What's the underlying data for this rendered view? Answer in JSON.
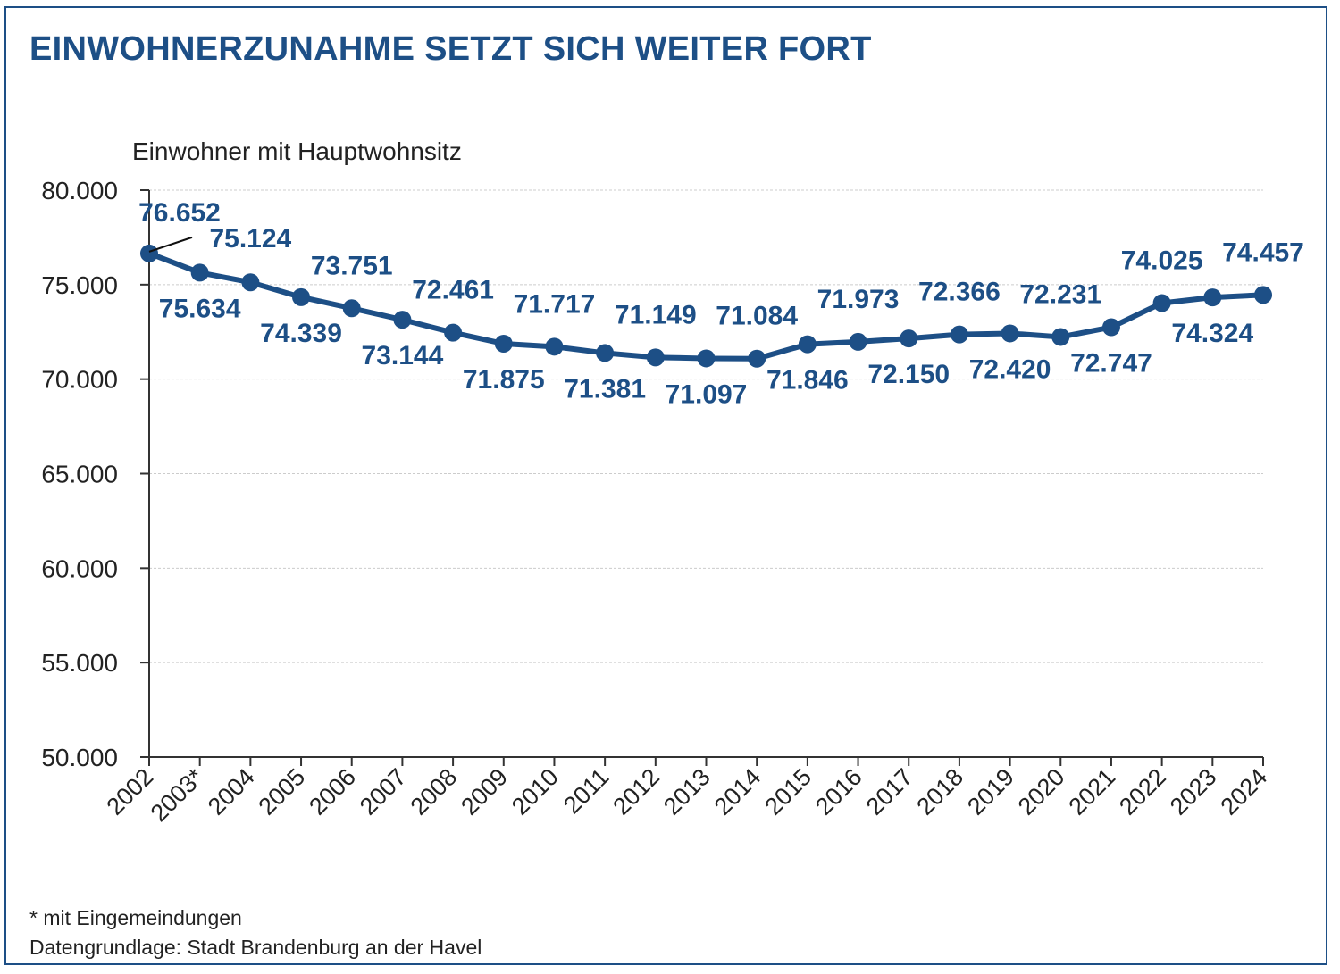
{
  "colors": {
    "accent": "#1d4f86",
    "frame": "#1d4f86",
    "axis": "#333333",
    "grid": "#cccccc"
  },
  "title": "EINWOHNERZUNAHME SETZT SICH WEITER FORT",
  "footnotes": {
    "note": "* mit Eingemeindungen",
    "source": "Datengrundlage: Stadt Brandenburg an der Havel"
  },
  "chart_data": {
    "type": "line",
    "title": "EINWOHNERZUNAHME SETZT SICH WEITER FORT",
    "xlabel": "",
    "ylabel": "Einwohner mit Hauptwohnsitz",
    "ylim": [
      50000,
      80000
    ],
    "grid": true,
    "yticks": [
      {
        "value": 80000,
        "label": "80.000"
      },
      {
        "value": 75000,
        "label": "75.000"
      },
      {
        "value": 70000,
        "label": "70.000"
      },
      {
        "value": 65000,
        "label": "65.000"
      },
      {
        "value": 60000,
        "label": "60.000"
      },
      {
        "value": 55000,
        "label": "55.000"
      },
      {
        "value": 50000,
        "label": "50.000"
      }
    ],
    "categories": [
      "2002",
      "2003*",
      "2004",
      "2005",
      "2006",
      "2007",
      "2008",
      "2009",
      "2010",
      "2011",
      "2012",
      "2013",
      "2014",
      "2015",
      "2016",
      "2017",
      "2018",
      "2019",
      "2020",
      "2021",
      "2022",
      "2023",
      "2024"
    ],
    "series": [
      {
        "name": "Einwohner mit Hauptwohnsitz",
        "values": [
          76652,
          75634,
          75124,
          74339,
          73751,
          73144,
          72461,
          71875,
          71717,
          71381,
          71149,
          71097,
          71084,
          71846,
          71973,
          72150,
          72366,
          72420,
          72231,
          72747,
          74025,
          74324,
          74457
        ],
        "labels": [
          "76.652",
          "75.634",
          "75.124",
          "74.339",
          "73.751",
          "73.144",
          "72.461",
          "71.875",
          "71.717",
          "71.381",
          "71.149",
          "71.097",
          "71.084",
          "71.846",
          "71.973",
          "72.150",
          "72.366",
          "72.420",
          "72.231",
          "72.747",
          "74.025",
          "74.324",
          "74.457"
        ],
        "label_side": [
          "above-leader",
          "below",
          "above",
          "below",
          "above",
          "below",
          "above",
          "below",
          "above",
          "below",
          "above",
          "below",
          "above",
          "below",
          "above",
          "below",
          "above",
          "below",
          "above",
          "below",
          "above",
          "below",
          "above"
        ]
      }
    ]
  }
}
